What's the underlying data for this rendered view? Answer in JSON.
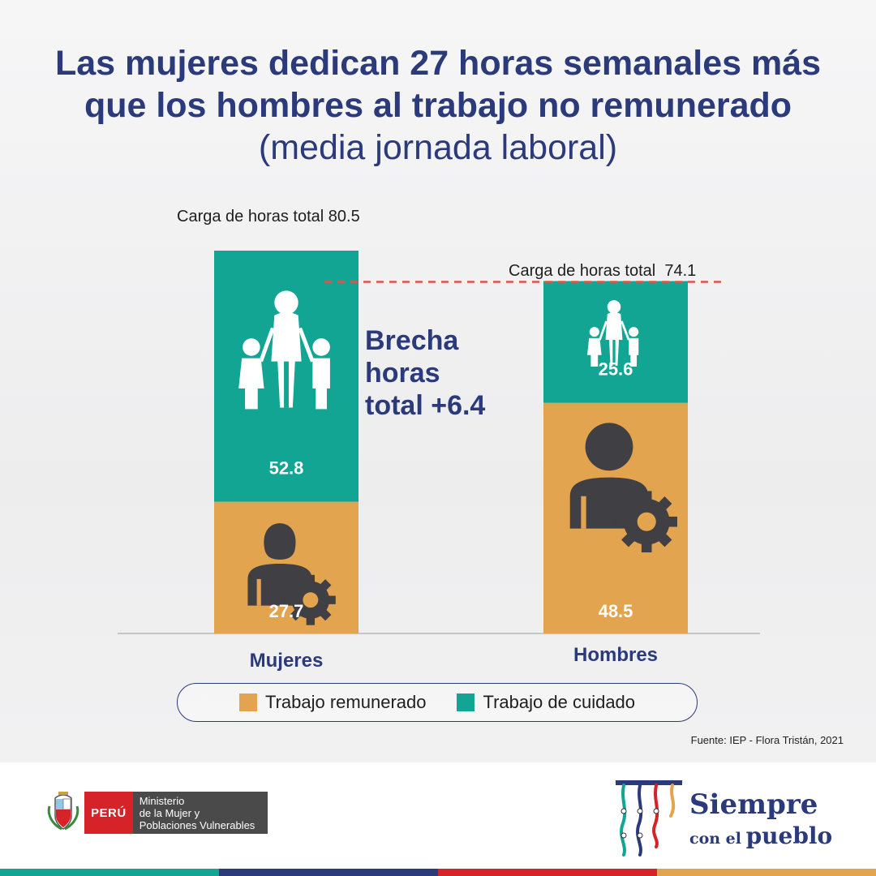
{
  "title": {
    "part1": "Las mujeres dedican 27 horas semanales más que los hombres al trabajo no remunerado",
    "part2": "(media jornada laboral)"
  },
  "chart_data": {
    "type": "bar",
    "stacked": true,
    "categories": [
      "Mujeres",
      "Hombres"
    ],
    "series": [
      {
        "name": "Trabajo remunerado",
        "color": "#e3a44f",
        "values": [
          27.7,
          48.5
        ]
      },
      {
        "name": "Trabajo de cuidado",
        "color": "#12a593",
        "values": [
          52.8,
          25.6
        ]
      }
    ],
    "totals": [
      {
        "label": "Carga de horas total 80.5"
      },
      {
        "label": "Carga de horas total  74.1"
      }
    ],
    "ylim": [
      0,
      80.5
    ],
    "gap_annotation": [
      "Brecha",
      "horas",
      "total +6.4"
    ],
    "legend_position": "bottom"
  },
  "colors": {
    "navy": "#2b3a7a",
    "icon_dark": "#3f3f44",
    "dashed_line": "#e0524a"
  },
  "source": "Fuente: IEP - Flora Tristán, 2021",
  "footer": {
    "peru": "PERÚ",
    "ministry": [
      "Ministerio",
      "de la Mujer y",
      "Poblaciones Vulnerables"
    ],
    "slogan_line1": "Siempre",
    "slogan_line2a": "con el",
    "slogan_line2b": "pueblo",
    "bar_colors": [
      "#12a593",
      "#2b3a7a",
      "#d6232a",
      "#e3a44f"
    ]
  }
}
